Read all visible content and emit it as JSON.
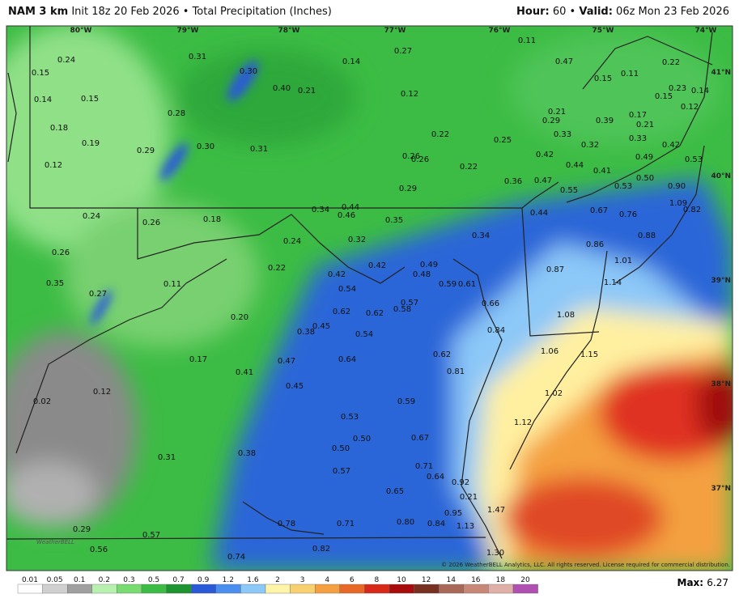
{
  "header": {
    "model": "NAM 3 km",
    "init": "Init 18z 20 Feb 2026 • Total Precipitation (Inches)",
    "hour_label": "Hour:",
    "hour": "60",
    "separator": "•",
    "valid_label": "Valid:",
    "valid": "06z Mon 23 Feb 2026"
  },
  "map": {
    "lon_labels": [
      "80°W",
      "79°W",
      "78°W",
      "77°W",
      "76°W",
      "75°W",
      "74°W"
    ],
    "lat_labels": [
      "41°N",
      "40°N",
      "39°N",
      "38°N",
      "37°N"
    ],
    "point_labels": [
      "0.24",
      "0.31",
      "0.30",
      "0.14",
      "0.27",
      "0.11",
      "0.47",
      "0.22",
      "0.15",
      "0.15",
      "0.11",
      "0.40",
      "0.21",
      "0.12",
      "0.23",
      "0.14",
      "0.15",
      "0.14",
      "0.15",
      "0.28",
      "0.21",
      "0.17",
      "0.12",
      "0.29",
      "0.39",
      "0.21",
      "0.18",
      "0.22",
      "0.33",
      "0.33",
      "0.19",
      "0.30",
      "0.31",
      "0.29",
      "0.25",
      "0.32",
      "0.42",
      "0.12",
      "0.26",
      "0.26",
      "0.22",
      "0.42",
      "0.49",
      "0.44",
      "0.41",
      "0.53",
      "0.50",
      "0.47",
      "0.36",
      "0.53",
      "0.90",
      "0.29",
      "0.55",
      "1.09",
      "0.82",
      "0.67",
      "0.76",
      "0.44",
      "0.24",
      "0.26",
      "0.18",
      "0.34",
      "0.44",
      "0.46",
      "0.35",
      "0.34",
      "0.88",
      "0.86",
      "0.24",
      "0.32",
      "0.26",
      "1.01",
      "0.22",
      "0.42",
      "0.49",
      "0.48",
      "0.87",
      "0.42",
      "0.35",
      "0.11",
      "0.54",
      "0.59",
      "0.61",
      "1.14",
      "0.27",
      "0.57",
      "0.58",
      "0.66",
      "0.62",
      "0.62",
      "0.20",
      "1.08",
      "0.45",
      "0.38",
      "0.84",
      "0.54",
      "0.17",
      "0.47",
      "0.64",
      "0.62",
      "1.06",
      "1.15",
      "0.41",
      "0.81",
      "0.45",
      "0.02",
      "0.12",
      "1.02",
      "0.59",
      "0.53",
      "1.12",
      "0.50",
      "0.67",
      "0.50",
      "0.38",
      "0.31",
      "0.71",
      "0.57",
      "0.64",
      "0.92",
      "0.65",
      "0.21",
      "1.47",
      "0.95",
      "0.78",
      "0.71",
      "0.80",
      "0.84",
      "1.13",
      "0.29",
      "0.57",
      "0.82",
      "0.56",
      "1.30",
      "0.74"
    ],
    "watermark": "WeatherBELL",
    "copyright": "© 2026 WeatherBELL Analytics, LLC. All rights reserved. License required for commercial distribution."
  },
  "colorbar": {
    "labels": [
      "0.01",
      "0.05",
      "0.1",
      "0.2",
      "0.3",
      "0.5",
      "0.7",
      "0.9",
      "1.2",
      "1.6",
      "2",
      "3",
      "4",
      "6",
      "8",
      "10",
      "12",
      "14",
      "16",
      "18",
      "20"
    ],
    "colors": [
      "#ffffff",
      "#d0d0d0",
      "#a0a0a0",
      "#b8f0b0",
      "#78dc70",
      "#3cbc44",
      "#1e9430",
      "#2a5ad8",
      "#4a8ef0",
      "#8cc8f8",
      "#fff4a8",
      "#f8d070",
      "#f4a040",
      "#e86828",
      "#d82818",
      "#a80c0c",
      "#783020",
      "#a86858",
      "#c88878",
      "#e0b0a8",
      "#b050b0"
    ],
    "max_label": "Max:",
    "max": "6.27"
  }
}
